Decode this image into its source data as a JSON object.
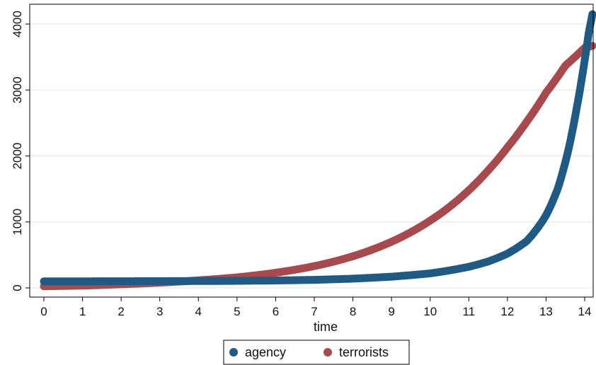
{
  "chart_data": {
    "type": "line",
    "title": "",
    "xlabel": "time",
    "ylabel": "",
    "xlim": [
      0,
      14.2
    ],
    "ylim": [
      0,
      4200
    ],
    "xticks": [
      0,
      1,
      2,
      3,
      4,
      5,
      6,
      7,
      8,
      9,
      10,
      11,
      12,
      13,
      14
    ],
    "yticks": [
      0,
      1000,
      2000,
      3000,
      4000
    ],
    "grid": true,
    "legend_position": "bottom",
    "series": [
      {
        "name": "agency",
        "color": "#1f5a85",
        "x": [
          0,
          1,
          2,
          3,
          4,
          5,
          6,
          7,
          8,
          9,
          10,
          10.5,
          11,
          11.5,
          12,
          12.5,
          13,
          13.3,
          13.6,
          13.8,
          14,
          14.1,
          14.2
        ],
        "y": [
          100,
          100,
          101,
          102,
          104,
          107,
          112,
          122,
          140,
          170,
          220,
          265,
          320,
          400,
          520,
          710,
          1100,
          1500,
          2150,
          2750,
          3450,
          3850,
          4150
        ]
      },
      {
        "name": "terrorists",
        "color": "#a84a4d",
        "x": [
          0,
          1,
          2,
          3,
          4,
          5,
          6,
          7,
          8,
          9,
          10,
          11,
          11.5,
          12,
          12.5,
          13,
          13.5,
          14,
          14.2
        ],
        "y": [
          25,
          35,
          55,
          80,
          115,
          160,
          230,
          330,
          480,
          700,
          1020,
          1480,
          1780,
          2130,
          2520,
          2960,
          3370,
          3640,
          3670
        ]
      }
    ]
  }
}
